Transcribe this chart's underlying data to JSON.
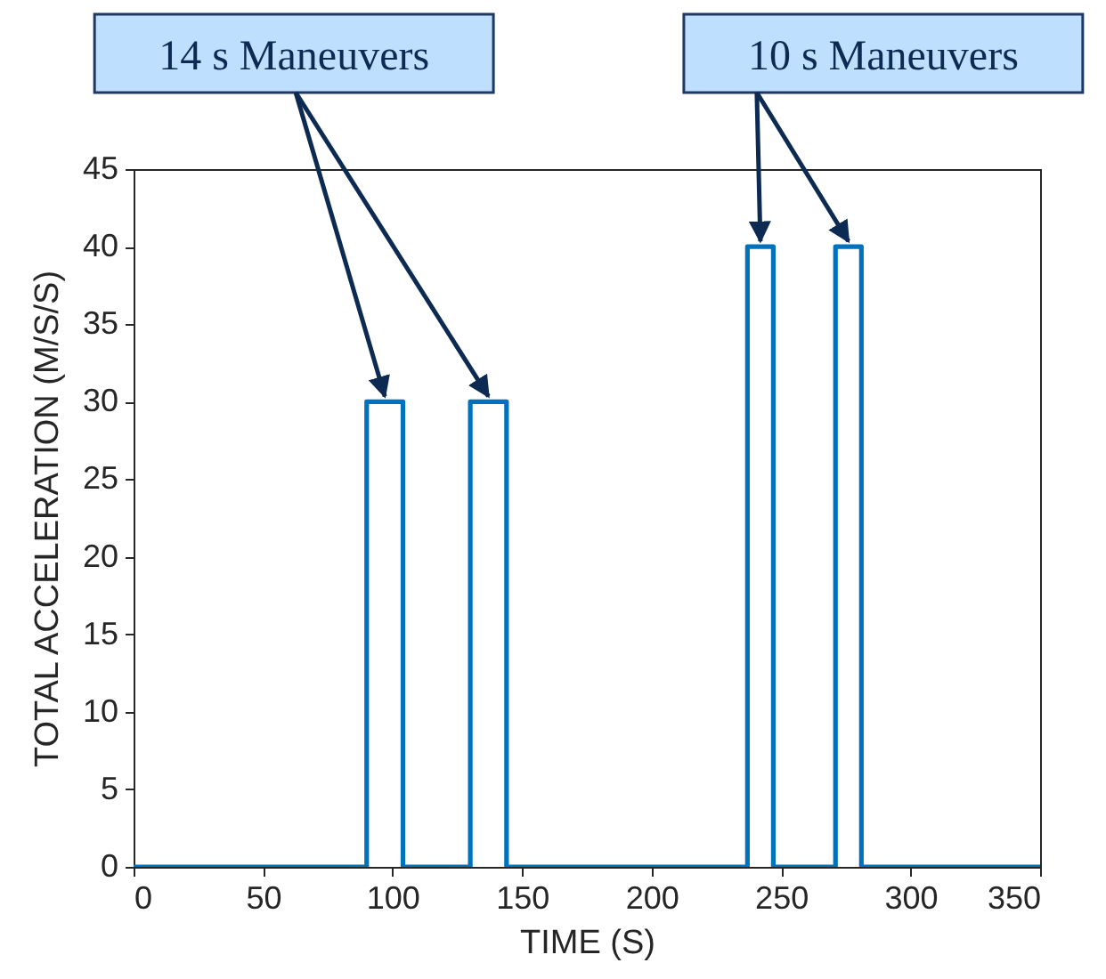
{
  "chart_data": {
    "type": "line",
    "xlabel": "TIME (S)",
    "ylabel": "TOTAL ACCELERATION (M/S/S)",
    "x": [
      0,
      90,
      90,
      104,
      104,
      130,
      130,
      144,
      144,
      237,
      237,
      247,
      247,
      271,
      271,
      281,
      281,
      350
    ],
    "series": [
      {
        "color": "#0072bd",
        "values": [
          0,
          0,
          30,
          30,
          0,
          0,
          30,
          30,
          0,
          0,
          40,
          40,
          0,
          0,
          40,
          40,
          0,
          0
        ]
      }
    ],
    "xlim": [
      0,
      350
    ],
    "xticks": [
      0,
      50,
      100,
      150,
      200,
      250,
      300,
      350
    ],
    "ylim": [
      0,
      45
    ],
    "yticks": [
      0,
      5,
      10,
      15,
      20,
      25,
      30,
      35,
      40,
      45
    ],
    "grid": false,
    "line_style": "solid",
    "annotations": [
      {
        "text": "14 s Maneuvers",
        "x": 97,
        "y": 30
      },
      {
        "text": "10 s Maneuvers",
        "x": 242,
        "y": 40
      }
    ]
  }
}
